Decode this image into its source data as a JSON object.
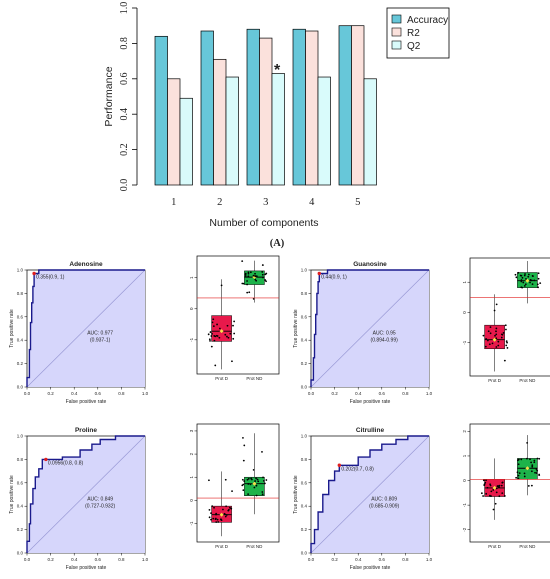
{
  "chart_data": [
    {
      "type": "bar",
      "panel_label": "(A)",
      "xlabel": "Number of components",
      "ylabel": "Performance",
      "categories": [
        "1",
        "2",
        "3",
        "4",
        "5"
      ],
      "ylim": [
        0,
        1.0
      ],
      "yticks": [
        "0.0",
        "0.2",
        "0.4",
        "0.6",
        "0.8",
        "1.0"
      ],
      "series": [
        {
          "name": "Accuracy",
          "color": "#67c7d9",
          "values": [
            0.84,
            0.87,
            0.88,
            0.88,
            0.9
          ]
        },
        {
          "name": "R2",
          "color": "#fbe1dc",
          "values": [
            0.6,
            0.71,
            0.83,
            0.87,
            0.9
          ]
        },
        {
          "name": "Q2",
          "color": "#d9fbfb",
          "values": [
            0.49,
            0.61,
            0.63,
            0.61,
            0.6
          ]
        }
      ],
      "annotation": {
        "marker": "*",
        "category": "3",
        "value": 0.65,
        "color": "#e02020"
      },
      "legend": "top-right"
    },
    {
      "type": "roc",
      "title": "Adenosine",
      "xlabel": "False positive rate",
      "ylabel": "True positive rate",
      "threshold_label": "0.355(0.9, 1)",
      "threshold_point": [
        0.06,
        0.97
      ],
      "auc_label": "AUC: 0.977",
      "ci_label": "(0.937-1)",
      "curve": [
        [
          0,
          0
        ],
        [
          0,
          0.08
        ],
        [
          0.02,
          0.08
        ],
        [
          0.02,
          0.32
        ],
        [
          0.03,
          0.32
        ],
        [
          0.03,
          0.55
        ],
        [
          0.04,
          0.55
        ],
        [
          0.04,
          0.72
        ],
        [
          0.05,
          0.72
        ],
        [
          0.05,
          0.86
        ],
        [
          0.06,
          0.86
        ],
        [
          0.06,
          0.97
        ],
        [
          0.1,
          0.97
        ],
        [
          0.1,
          1
        ],
        [
          1,
          1
        ]
      ],
      "ticks": [
        "0.0",
        "0.2",
        "0.4",
        "0.6",
        "0.8",
        "1.0"
      ]
    },
    {
      "type": "boxplot",
      "groups": [
        "Prot D",
        "Prot ND"
      ],
      "colors": [
        "#e8194b",
        "#1db34a"
      ],
      "yticks": [
        "-1",
        "0",
        "1"
      ],
      "ylim": [
        -2.1,
        1.7
      ],
      "cutoff": 0.35,
      "boxes": [
        {
          "q1": -1.05,
          "median": -0.72,
          "q3": -0.22,
          "lo": -1.95,
          "hi": 0.95
        },
        {
          "q1": 0.78,
          "median": 1.02,
          "q3": 1.22,
          "lo": 0.2,
          "hi": 1.55
        }
      ]
    },
    {
      "type": "roc",
      "title": "Guanosine",
      "xlabel": "False positive rate",
      "ylabel": "True positive rate",
      "threshold_label": "0.44(0.9, 1)",
      "threshold_point": [
        0.07,
        0.97
      ],
      "auc_label": "AUC: 0.95",
      "ci_label": "(0.894-0.99)",
      "curve": [
        [
          0,
          0
        ],
        [
          0,
          0.06
        ],
        [
          0.02,
          0.06
        ],
        [
          0.02,
          0.25
        ],
        [
          0.03,
          0.25
        ],
        [
          0.03,
          0.45
        ],
        [
          0.04,
          0.45
        ],
        [
          0.04,
          0.62
        ],
        [
          0.05,
          0.62
        ],
        [
          0.05,
          0.8
        ],
        [
          0.06,
          0.8
        ],
        [
          0.06,
          0.9
        ],
        [
          0.07,
          0.9
        ],
        [
          0.07,
          0.97
        ],
        [
          0.14,
          0.97
        ],
        [
          0.14,
          1
        ],
        [
          1,
          1
        ]
      ],
      "ticks": [
        "0.0",
        "0.2",
        "0.4",
        "0.6",
        "0.8",
        "1.0"
      ]
    },
    {
      "type": "boxplot",
      "groups": [
        "Prot D",
        "Prot ND"
      ],
      "colors": [
        "#e8194b",
        "#1db34a"
      ],
      "yticks": [
        "-1",
        "0",
        "1"
      ],
      "ylim": [
        -2.1,
        1.8
      ],
      "cutoff": 0.5,
      "boxes": [
        {
          "q1": -1.2,
          "median": -0.9,
          "q3": -0.42,
          "lo": -1.95,
          "hi": 0.6
        },
        {
          "q1": 0.82,
          "median": 1.05,
          "q3": 1.32,
          "lo": 0.3,
          "hi": 1.7
        }
      ]
    },
    {
      "type": "roc",
      "title": "Proline",
      "xlabel": "False positive rate",
      "ylabel": "True positive rate",
      "threshold_label": "0.0956(0.8, 0.8)",
      "threshold_point": [
        0.16,
        0.8
      ],
      "auc_label": "AUC: 0.849",
      "ci_label": "(0.727-0.932)",
      "curve": [
        [
          0,
          0
        ],
        [
          0,
          0.1
        ],
        [
          0.02,
          0.1
        ],
        [
          0.02,
          0.25
        ],
        [
          0.03,
          0.25
        ],
        [
          0.03,
          0.42
        ],
        [
          0.05,
          0.42
        ],
        [
          0.05,
          0.55
        ],
        [
          0.07,
          0.55
        ],
        [
          0.07,
          0.65
        ],
        [
          0.1,
          0.65
        ],
        [
          0.1,
          0.72
        ],
        [
          0.13,
          0.72
        ],
        [
          0.13,
          0.8
        ],
        [
          0.3,
          0.8
        ],
        [
          0.3,
          0.82
        ],
        [
          0.45,
          0.82
        ],
        [
          0.45,
          0.88
        ],
        [
          0.55,
          0.88
        ],
        [
          0.55,
          0.93
        ],
        [
          0.62,
          0.93
        ],
        [
          0.62,
          0.97
        ],
        [
          0.75,
          0.97
        ],
        [
          0.75,
          1
        ],
        [
          1,
          1
        ]
      ],
      "ticks": [
        "0.0",
        "0.2",
        "0.4",
        "0.6",
        "0.8",
        "1.0"
      ]
    },
    {
      "type": "boxplot",
      "groups": [
        "Prot D",
        "Prot ND"
      ],
      "colors": [
        "#e8194b",
        "#1db34a"
      ],
      "yticks": [
        "-1",
        "0",
        "1",
        "2",
        "3"
      ],
      "ylim": [
        -1.8,
        3.3
      ],
      "cutoff": 0.1,
      "boxes": [
        {
          "q1": -0.95,
          "median": -0.62,
          "q3": -0.25,
          "lo": -1.55,
          "hi": 1.25
        },
        {
          "q1": 0.2,
          "median": 0.72,
          "q3": 1.0,
          "lo": -0.6,
          "hi": 2.9
        }
      ]
    },
    {
      "type": "roc",
      "title": "Citrulline",
      "xlabel": "False positive rate",
      "ylabel": "True positive rate",
      "threshold_label": "0.202(0.7, 0.8)",
      "threshold_point": [
        0.24,
        0.75
      ],
      "auc_label": "AUC: 0.809",
      "ci_label": "(0.685-0.909)",
      "curve": [
        [
          0,
          0
        ],
        [
          0,
          0.08
        ],
        [
          0.03,
          0.08
        ],
        [
          0.03,
          0.2
        ],
        [
          0.06,
          0.2
        ],
        [
          0.06,
          0.35
        ],
        [
          0.1,
          0.35
        ],
        [
          0.1,
          0.5
        ],
        [
          0.15,
          0.5
        ],
        [
          0.15,
          0.62
        ],
        [
          0.2,
          0.62
        ],
        [
          0.2,
          0.7
        ],
        [
          0.24,
          0.7
        ],
        [
          0.24,
          0.75
        ],
        [
          0.4,
          0.75
        ],
        [
          0.4,
          0.82
        ],
        [
          0.5,
          0.82
        ],
        [
          0.5,
          0.88
        ],
        [
          0.6,
          0.88
        ],
        [
          0.6,
          0.93
        ],
        [
          0.72,
          0.93
        ],
        [
          0.72,
          0.97
        ],
        [
          0.82,
          0.97
        ],
        [
          0.82,
          1
        ],
        [
          1,
          1
        ]
      ],
      "ticks": [
        "0.0",
        "0.2",
        "0.4",
        "0.6",
        "0.8",
        "1.0"
      ]
    },
    {
      "type": "boxplot",
      "groups": [
        "Prot D",
        "Prot ND"
      ],
      "colors": [
        "#e8194b",
        "#1db34a"
      ],
      "yticks": [
        "-2",
        "-1",
        "0",
        "1",
        "2"
      ],
      "ylim": [
        -2.5,
        2.3
      ],
      "cutoff": 0.05,
      "boxes": [
        {
          "q1": -0.65,
          "median": -0.3,
          "q3": 0.05,
          "lo": -1.6,
          "hi": 0.9
        },
        {
          "q1": 0.05,
          "median": 0.5,
          "q3": 0.9,
          "lo": -0.6,
          "hi": 1.85
        }
      ]
    }
  ]
}
